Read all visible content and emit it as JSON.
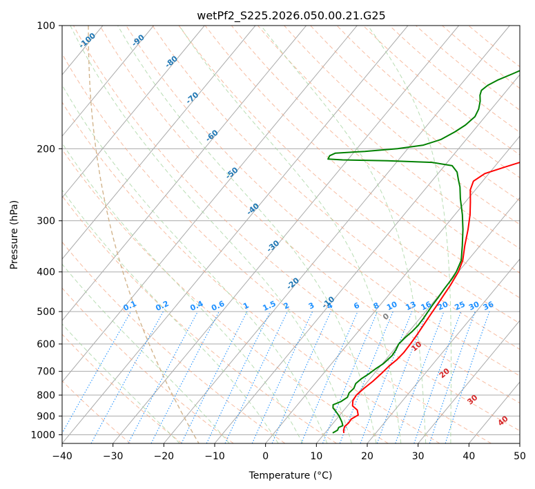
{
  "chart_data": {
    "type": "line",
    "title": "wetPf2_S225.2026.050.00.21.G25",
    "xlabel": "Temperature (°C)",
    "ylabel": "Pressure (hPa)",
    "xlim": [
      -40,
      50
    ],
    "ylim": [
      1050,
      100
    ],
    "y_scale": "log",
    "grid": true,
    "x_ticks": [
      -40,
      -30,
      -20,
      -10,
      0,
      10,
      20,
      30,
      40,
      50
    ],
    "y_ticks": [
      100,
      200,
      300,
      400,
      500,
      600,
      700,
      800,
      900,
      1000
    ],
    "series": [
      {
        "name": "",
        "color": "#ff0000",
        "points": [
          [
            13.7,
            990
          ],
          [
            13.2,
            975
          ],
          [
            12.8,
            955
          ],
          [
            13.0,
            935
          ],
          [
            12.9,
            915
          ],
          [
            13.6,
            895
          ],
          [
            12.6,
            870
          ],
          [
            11.0,
            850
          ],
          [
            10.2,
            825
          ],
          [
            10.0,
            800
          ],
          [
            10.4,
            770
          ],
          [
            11.0,
            740
          ],
          [
            11.4,
            710
          ],
          [
            11.7,
            680
          ],
          [
            12.2,
            655
          ],
          [
            12.4,
            630
          ],
          [
            12.3,
            600
          ],
          [
            12.1,
            570
          ],
          [
            11.8,
            540
          ],
          [
            11.5,
            510
          ],
          [
            11.2,
            480
          ],
          [
            10.9,
            455
          ],
          [
            10.6,
            430
          ],
          [
            10.0,
            400
          ],
          [
            9.0,
            375
          ],
          [
            7.0,
            345
          ],
          [
            5.0,
            315
          ],
          [
            3.0,
            290
          ],
          [
            1.0,
            270
          ],
          [
            -1.0,
            252
          ],
          [
            -1.8,
            240
          ],
          [
            -0.8,
            230
          ],
          [
            2.0,
            222
          ],
          [
            5.0,
            214
          ],
          [
            8.0,
            207
          ],
          [
            9.5,
            200
          ],
          [
            11.0,
            190
          ],
          [
            12.5,
            180
          ],
          [
            14.0,
            170
          ],
          [
            15.0,
            162
          ],
          [
            16.0,
            155
          ],
          [
            17.0,
            147
          ],
          [
            18.0,
            140
          ],
          [
            19.2,
            133
          ],
          [
            20.0,
            126
          ],
          [
            21.0,
            120
          ],
          [
            22.0,
            115
          ],
          [
            23.5,
            110
          ],
          [
            25.5,
            105
          ],
          [
            27.5,
            100
          ]
        ]
      },
      {
        "name": "",
        "color": "#008000",
        "points": [
          [
            11.5,
            990
          ],
          [
            12.0,
            975
          ],
          [
            11.8,
            960
          ],
          [
            12.3,
            950
          ],
          [
            11.5,
            930
          ],
          [
            10.0,
            900
          ],
          [
            8.5,
            875
          ],
          [
            7.5,
            860
          ],
          [
            7.0,
            845
          ],
          [
            8.0,
            830
          ],
          [
            8.6,
            810
          ],
          [
            8.2,
            790
          ],
          [
            8.4,
            770
          ],
          [
            8.0,
            750
          ],
          [
            8.3,
            730
          ],
          [
            9.0,
            710
          ],
          [
            9.5,
            690
          ],
          [
            10.2,
            670
          ],
          [
            10.4,
            655
          ],
          [
            10.6,
            640
          ],
          [
            10.4,
            620
          ],
          [
            10.0,
            600
          ],
          [
            10.2,
            580
          ],
          [
            10.6,
            560
          ],
          [
            10.8,
            540
          ],
          [
            10.7,
            520
          ],
          [
            10.5,
            500
          ],
          [
            10.3,
            480
          ],
          [
            10.2,
            460
          ],
          [
            10.0,
            440
          ],
          [
            9.9,
            420
          ],
          [
            9.6,
            400
          ],
          [
            8.7,
            375
          ],
          [
            6.5,
            345
          ],
          [
            4.0,
            315
          ],
          [
            1.5,
            290
          ],
          [
            -1.5,
            265
          ],
          [
            -3.5,
            248
          ],
          [
            -5.0,
            238
          ],
          [
            -6.5,
            228
          ],
          [
            -8.5,
            220
          ],
          [
            -13.0,
            216
          ],
          [
            -22.0,
            214
          ],
          [
            -31.0,
            213
          ],
          [
            -34.0,
            212
          ],
          [
            -34.2,
            208
          ],
          [
            -33.5,
            205
          ],
          [
            -28.0,
            203
          ],
          [
            -22.0,
            200
          ],
          [
            -17.5,
            196
          ],
          [
            -15.0,
            190
          ],
          [
            -13.5,
            182
          ],
          [
            -12.5,
            175
          ],
          [
            -12.0,
            167
          ],
          [
            -12.5,
            160
          ],
          [
            -13.5,
            153
          ],
          [
            -14.5,
            148
          ],
          [
            -15.0,
            144
          ],
          [
            -14.6,
            140
          ],
          [
            -13.5,
            136
          ],
          [
            -11.5,
            131
          ],
          [
            -9.5,
            126
          ],
          [
            -8.0,
            121
          ],
          [
            -6.5,
            116
          ],
          [
            -5.2,
            111
          ],
          [
            -4.0,
            106
          ],
          [
            -2.5,
            100
          ]
        ]
      }
    ],
    "isotherms_c": [
      -140,
      -130,
      -120,
      -110,
      -100,
      -90,
      -80,
      -70,
      -60,
      -50,
      -40,
      -30,
      -20,
      -10,
      0,
      10,
      20,
      30,
      40,
      50
    ],
    "dry_adiabats_theta_c": [
      -30,
      -20,
      -10,
      0,
      10,
      20,
      30,
      40,
      50,
      60,
      70,
      80,
      90,
      100,
      110,
      120,
      130,
      140,
      150,
      160,
      170,
      180,
      190,
      200
    ],
    "moist_adiabats_c": [
      -20,
      -10,
      0,
      5,
      10,
      15,
      20,
      25,
      30,
      35
    ],
    "moist_adiabat_labels": {
      "color": "#1f77b4",
      "items": [
        {
          "text": "-100",
          "t": -100
        },
        {
          "text": "-90",
          "t": -90
        },
        {
          "text": "-80",
          "t": -80
        },
        {
          "text": "-70",
          "t": -70
        },
        {
          "text": "-60",
          "t": -60
        },
        {
          "text": "-50",
          "t": -50
        },
        {
          "text": "-40",
          "t": -40
        },
        {
          "text": "-30",
          "t": -30
        },
        {
          "text": "-20",
          "t": -20
        },
        {
          "text": "-10",
          "t": -10
        }
      ]
    },
    "mixing_ratio_lines": {
      "color": "#1e90ff",
      "label_pressure": 500,
      "values": [
        0.1,
        0.2,
        0.4,
        0.6,
        1,
        1.5,
        2,
        3,
        4,
        6,
        8,
        10,
        13,
        16,
        20,
        25,
        30,
        36
      ],
      "labels": [
        "0.1",
        "0.2",
        "0.4",
        "0.6",
        "1",
        "1.5",
        "2",
        "3",
        "4",
        "6",
        "8",
        "10",
        "13",
        "16",
        "20",
        "25",
        "30",
        "36"
      ]
    },
    "freezing_level_labels": {
      "items": [
        {
          "text": "0",
          "color": "#808080",
          "t": 24,
          "p": 520
        },
        {
          "text": "10",
          "color": "#d62728",
          "t": 30,
          "p": 615
        },
        {
          "text": "20",
          "color": "#d62728",
          "t": 35.5,
          "p": 715
        },
        {
          "text": "30",
          "color": "#d62728",
          "t": 41,
          "p": 830
        },
        {
          "text": "40",
          "color": "#d62728",
          "t": 47,
          "p": 935
        }
      ]
    },
    "colors": {
      "isotherm": "#aaaaaa",
      "dry_adiabat": "#f4a582",
      "moist_adiabat": "#a6d5a0",
      "freezing_curve": "#d2b48c"
    }
  }
}
